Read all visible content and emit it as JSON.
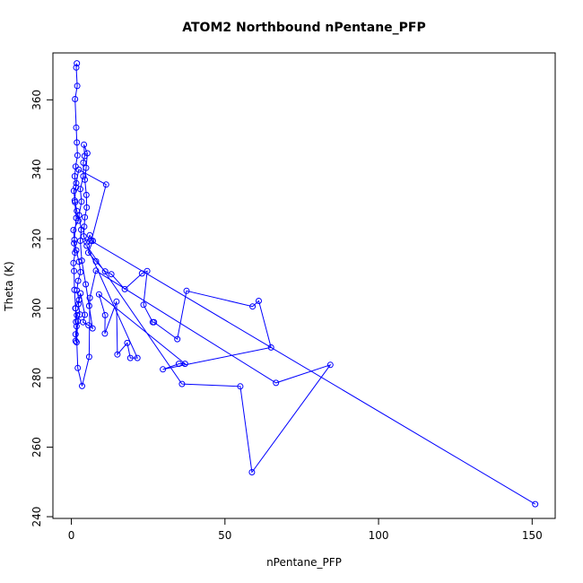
{
  "chart_data": {
    "type": "line",
    "title": "ATOM2 Northbound nPentane_PFP",
    "xlabel": "nPentane_PFP",
    "ylabel": "Theta (K)",
    "xlim": [
      -6,
      157.5
    ],
    "ylim": [
      239.5,
      373.5
    ],
    "xticks": [
      0,
      50,
      100,
      150
    ],
    "yticks": [
      240,
      260,
      280,
      300,
      320,
      340,
      360
    ],
    "grid": false,
    "legend": "none",
    "color": "#0000ff",
    "marker": "open-circle",
    "series": [
      {
        "points": [
          [
            1.8,
            370.5
          ],
          [
            1.6,
            369.3
          ],
          [
            1.9,
            364.0
          ],
          [
            1.2,
            360.2
          ],
          [
            1.6,
            352.0
          ],
          [
            1.8,
            347.7
          ],
          [
            2.0,
            344.0
          ],
          [
            1.4,
            340.8
          ],
          [
            1.1,
            338.0
          ],
          [
            1.5,
            334.8
          ],
          [
            0.8,
            333.8
          ],
          [
            1.2,
            330.5
          ],
          [
            1.8,
            328.0
          ],
          [
            2.3,
            325.2
          ],
          [
            0.7,
            322.5
          ],
          [
            1.0,
            319.7
          ],
          [
            1.6,
            316.7
          ],
          [
            2.5,
            313.4
          ],
          [
            3.0,
            310.4
          ],
          [
            2.2,
            307.9
          ],
          [
            1.8,
            305.1
          ],
          [
            2.5,
            302.4
          ],
          [
            1.3,
            300.0
          ],
          [
            1.8,
            298.0
          ],
          [
            1.5,
            296.1
          ],
          [
            1.7,
            294.8
          ],
          [
            1.4,
            292.5
          ],
          [
            1.4,
            290.6
          ],
          [
            1.7,
            290.2
          ],
          [
            2.1,
            296.3
          ],
          [
            2.8,
            298.2
          ],
          [
            2.3,
            301.2
          ],
          [
            3.0,
            304.3
          ],
          [
            4.4,
            298.1
          ],
          [
            3.8,
            296.0
          ],
          [
            5.6,
            295.1
          ],
          [
            6.9,
            294.2
          ],
          [
            5.8,
            300.7
          ],
          [
            4.7,
            306.9
          ],
          [
            3.4,
            313.7
          ],
          [
            2.9,
            319.4
          ],
          [
            3.2,
            322.6
          ],
          [
            2.5,
            326.8
          ],
          [
            3.3,
            330.7
          ],
          [
            2.9,
            334.3
          ],
          [
            3.9,
            338.0
          ],
          [
            3.9,
            341.9
          ],
          [
            4.3,
            343.8
          ],
          [
            4.1,
            347.1
          ],
          [
            5.2,
            344.6
          ],
          [
            4.8,
            340.4
          ],
          [
            4.4,
            337.0
          ],
          [
            4.9,
            332.6
          ],
          [
            5.0,
            329.0
          ],
          [
            4.4,
            326.2
          ],
          [
            4.2,
            323.5
          ],
          [
            4.0,
            320.7
          ],
          [
            5.0,
            319.0
          ],
          [
            6.0,
            321.0
          ],
          [
            7.0,
            319.4
          ],
          [
            5.5,
            316.0
          ],
          [
            8.0,
            313.5
          ],
          [
            11.0,
            310.6
          ],
          [
            13.0,
            309.8
          ],
          [
            17.4,
            305.5
          ],
          [
            23.0,
            310.0
          ],
          [
            24.7,
            310.7
          ],
          [
            23.5,
            301.0
          ],
          [
            26.5,
            296.0
          ],
          [
            26.9,
            296.0
          ],
          [
            34.5,
            291.1
          ],
          [
            37.5,
            305.0
          ],
          [
            59.0,
            300.5
          ],
          [
            61.0,
            302.1
          ],
          [
            65.0,
            288.7
          ],
          [
            29.8,
            282.4
          ],
          [
            35.0,
            284.0
          ],
          [
            37.0,
            284.0
          ],
          [
            9.0,
            304.0
          ],
          [
            11.0,
            298.0
          ],
          [
            10.9,
            292.7
          ],
          [
            14.7,
            301.9
          ],
          [
            15.0,
            286.7
          ],
          [
            18.2,
            290.0
          ],
          [
            19.2,
            285.7
          ],
          [
            21.5,
            285.7
          ],
          [
            5.0,
            318.0
          ],
          [
            36.0,
            278.2
          ],
          [
            55.0,
            277.5
          ],
          [
            58.8,
            252.8
          ],
          [
            84.3,
            283.7
          ],
          [
            66.6,
            278.5
          ],
          [
            8.0,
            310.8
          ],
          [
            6.0,
            303.0
          ],
          [
            5.8,
            286.0
          ],
          [
            3.5,
            277.6
          ],
          [
            2.1,
            282.8
          ],
          [
            1.4,
            300.0
          ],
          [
            1.0,
            305.3
          ],
          [
            0.9,
            310.7
          ],
          [
            0.7,
            313.0
          ],
          [
            1.2,
            316.0
          ],
          [
            0.9,
            318.7
          ],
          [
            1.6,
            326.0
          ],
          [
            1.1,
            331.0
          ],
          [
            1.6,
            336.0
          ],
          [
            2.4,
            339.9
          ],
          [
            11.3,
            335.6
          ],
          [
            6.5,
            319.4
          ],
          [
            151.0,
            243.6
          ]
        ]
      }
    ]
  }
}
